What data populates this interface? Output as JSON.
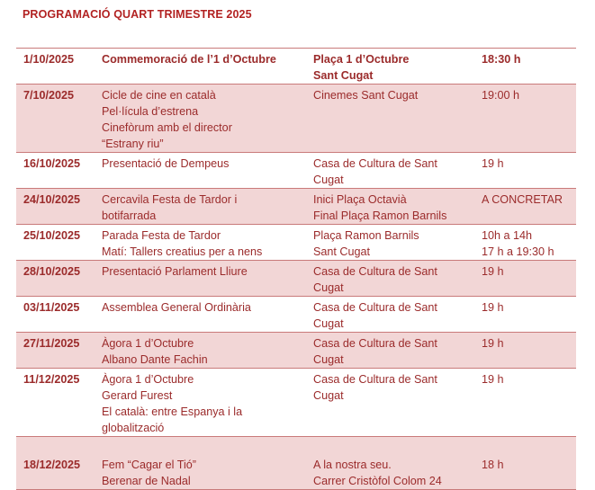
{
  "title": "PROGRAMACIÓ QUART TRIMESTRE 2025",
  "rows": [
    {
      "date": "1/10/2025",
      "activity": [
        "Commemoració de l’1 d’Octubre"
      ],
      "place": [
        "Plaça 1 d’Octubre",
        "Sant Cugat"
      ],
      "time": [
        "18:30  h"
      ]
    },
    {
      "date": "7/10/2025",
      "activity": [
        "Cicle de cine en català",
        "Pel·lícula d’estrena",
        "Cinefòrum amb el director",
        "“Estrany riu”"
      ],
      "place": [
        "Cinemes Sant Cugat"
      ],
      "time": [
        "19:00  h"
      ]
    },
    {
      "date": "16/10/2025",
      "activity": [
        "Presentació de Dempeus"
      ],
      "place": [
        "Casa de Cultura de Sant",
        "Cugat"
      ],
      "time": [
        "19  h"
      ]
    },
    {
      "date": "24/10/2025",
      "activity": [
        "Cercavila Festa de Tardor i",
        "botifarrada"
      ],
      "place": [
        "Inici Plaça Octavià",
        "Final Plaça Ramon Barnils"
      ],
      "time": [
        "A CONCRETAR"
      ]
    },
    {
      "date": "25/10/2025",
      "activity": [
        "Parada Festa de Tardor",
        "Matí: Tallers creatius per a nens"
      ],
      "place": [
        "Plaça Ramon Barnils",
        "Sant Cugat"
      ],
      "time": [
        "10h a 14h",
        "17 h a 19:30  h"
      ]
    },
    {
      "date": "28/10/2025",
      "activity": [
        "Presentació Parlament Lliure"
      ],
      "place": [
        "Casa de Cultura de Sant",
        "Cugat"
      ],
      "time": [
        "19  h"
      ]
    },
    {
      "date": "03/11/2025",
      "activity": [
        "Assemblea General Ordinària"
      ],
      "place": [
        "Casa de Cultura de Sant",
        "Cugat"
      ],
      "time": [
        "19  h"
      ]
    },
    {
      "date": "27/11/2025",
      "activity": [
        "Àgora 1 d’Octubre",
        "Albano Dante Fachin"
      ],
      "place": [
        "Casa de Cultura de Sant",
        "Cugat"
      ],
      "time": [
        "19  h"
      ]
    },
    {
      "date": "11/12/2025",
      "activity": [
        "Àgora 1 d’Octubre",
        "Gerard Furest",
        "El català: entre Espanya i la",
        "globalització"
      ],
      "place": [
        "Casa de Cultura de Sant",
        "Cugat"
      ],
      "time": [
        "19  h"
      ]
    },
    {
      "date": "18/12/2025",
      "activity": [
        "Fem “Cagar el Tió”",
        "Berenar de Nadal"
      ],
      "place": [
        "A la nostra seu.",
        "Carrer Cristòfol Colom 24"
      ],
      "time": [
        "18  h"
      ]
    }
  ]
}
